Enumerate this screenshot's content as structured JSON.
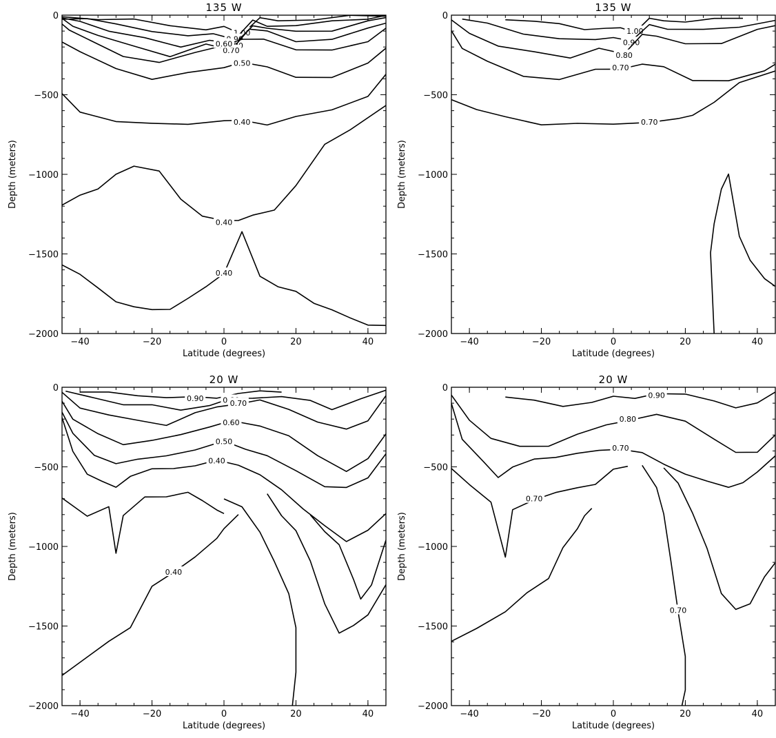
{
  "chart_data": [
    {
      "type": "line",
      "title": "135 W",
      "xlabel": "Latitude (degrees)",
      "ylabel": "Depth (meters)",
      "xlim": [
        -45,
        45
      ],
      "ylim": [
        -2000,
        0
      ],
      "x_ticks": [
        -40,
        -20,
        0,
        20,
        40
      ],
      "x_tick_labels": [
        "−40",
        "−20",
        "0",
        "20",
        "40"
      ],
      "y_ticks": [
        -2000,
        -1500,
        -1000,
        -500,
        0
      ],
      "y_tick_labels": [
        "−2000",
        "−1500",
        "−1000",
        "−500",
        "0"
      ],
      "grid": false,
      "series": [
        {
          "label": "1.00",
          "x": [
            -45,
            -35,
            -25,
            -15,
            -5,
            0,
            5,
            10,
            15,
            25,
            35,
            45
          ],
          "y": [
            -10,
            -20,
            -35,
            -60,
            -90,
            -80,
            -110,
            -20,
            -40,
            -20,
            -10,
            -5
          ]
        },
        {
          "label": "0.90",
          "x": [
            -45,
            -38,
            -30,
            -20,
            -10,
            -3,
            3,
            8,
            12,
            20,
            30,
            40,
            45
          ],
          "y": [
            -15,
            -30,
            -55,
            -95,
            -140,
            -110,
            -150,
            -40,
            -60,
            -70,
            -40,
            -15,
            -10
          ]
        },
        {
          "label": "0.80",
          "x": [
            -45,
            -40,
            -32,
            -22,
            -12,
            -4,
            3,
            8,
            12,
            20,
            30,
            40,
            45
          ],
          "y": [
            -20,
            -45,
            -90,
            -150,
            -200,
            -150,
            -190,
            -60,
            -80,
            -110,
            -90,
            -40,
            -20
          ]
        },
        {
          "label": "0.70",
          "x": [
            -45,
            -42,
            -35,
            -25,
            -15,
            -5,
            2,
            7,
            12,
            20,
            30,
            40,
            45
          ],
          "y": [
            -30,
            -60,
            -130,
            -200,
            -250,
            -190,
            -220,
            -80,
            -110,
            -160,
            -150,
            -90,
            -40
          ]
        },
        {
          "label": "0.60",
          "x": [
            -45,
            -43,
            -37,
            -28,
            -18,
            -8,
            0,
            5,
            11,
            20,
            30,
            40,
            45
          ],
          "y": [
            -50,
            -90,
            -170,
            -250,
            -300,
            -240,
            -180,
            -160,
            -150,
            -210,
            -230,
            -160,
            -80
          ]
        },
        {
          "label": "0.50",
          "x": [
            -45,
            -40,
            -30,
            -20,
            -10,
            0,
            5,
            12,
            20,
            30,
            40,
            45
          ],
          "y": [
            -160,
            -240,
            -330,
            -400,
            -370,
            -320,
            -300,
            -330,
            -380,
            -400,
            -300,
            -200
          ]
        },
        {
          "label": "0.40",
          "x": [
            -45,
            -40,
            -30,
            -20,
            -10,
            0,
            5,
            12,
            20,
            30,
            40,
            45
          ],
          "y": [
            -500,
            -610,
            -660,
            -690,
            -680,
            -660,
            -670,
            -680,
            -640,
            -600,
            -500,
            -380
          ]
        },
        {
          "label": "0.40",
          "x": [
            -45,
            -40,
            -35,
            -30,
            -25,
            -18,
            -12,
            -6,
            0,
            4,
            8,
            14,
            20,
            28,
            35,
            45
          ],
          "y": [
            -1200,
            -1120,
            -1100,
            -1000,
            -940,
            -990,
            -1150,
            -1260,
            -1300,
            -1280,
            -1260,
            -1230,
            -1060,
            -820,
            -720,
            -560
          ]
        },
        {
          "label": "0.40",
          "x": [
            -45,
            -40,
            -35,
            -30,
            -25,
            -20,
            -15,
            -10,
            -5,
            0,
            5,
            10,
            15,
            20,
            25,
            30,
            35,
            40,
            45
          ],
          "y": [
            -1560,
            -1630,
            -1720,
            -1790,
            -1840,
            -1850,
            -1840,
            -1790,
            -1700,
            -1620,
            -1370,
            -1630,
            -1710,
            -1740,
            -1800,
            -1860,
            -1900,
            -1940,
            -1960
          ]
        }
      ]
    },
    {
      "type": "line",
      "title": "135 W",
      "xlabel": "Latitude (degrees)",
      "ylabel": "Depth (meters)",
      "xlim": [
        -45,
        45
      ],
      "ylim": [
        -2000,
        0
      ],
      "x_ticks": [
        -40,
        -20,
        0,
        20,
        40
      ],
      "x_tick_labels": [
        "−40",
        "−20",
        "0",
        "20",
        "40"
      ],
      "y_ticks": [
        -2000,
        -1500,
        -1000,
        -500,
        0
      ],
      "y_tick_labels": [
        "−2000",
        "−1500",
        "−1000",
        "−500",
        "0"
      ],
      "grid": false,
      "series": [
        {
          "label": "1.00",
          "x": [
            -30,
            -22,
            -15,
            -8,
            -2,
            2,
            6,
            10,
            14,
            20,
            28,
            36
          ],
          "y": [
            -20,
            -40,
            -60,
            -80,
            -90,
            -80,
            -100,
            -30,
            -30,
            -40,
            -30,
            -10
          ]
        },
        {
          "label": "0.90",
          "x": [
            -42,
            -35,
            -25,
            -15,
            -5,
            0,
            5,
            10,
            15,
            25,
            35,
            45
          ],
          "y": [
            -20,
            -60,
            -110,
            -150,
            -160,
            -130,
            -170,
            -60,
            -80,
            -100,
            -70,
            -30
          ]
        },
        {
          "label": "0.80",
          "x": [
            -45,
            -40,
            -32,
            -22,
            -12,
            -4,
            3,
            8,
            12,
            20,
            30,
            40,
            45
          ],
          "y": [
            -40,
            -110,
            -190,
            -240,
            -260,
            -210,
            -250,
            -110,
            -140,
            -180,
            -170,
            -100,
            -60
          ]
        },
        {
          "label": "0.70",
          "x": [
            -45,
            -42,
            -35,
            -25,
            -15,
            -5,
            2,
            8,
            14,
            22,
            32,
            42,
            45
          ],
          "y": [
            -100,
            -200,
            -300,
            -380,
            -400,
            -350,
            -330,
            -310,
            -330,
            -400,
            -420,
            -350,
            -300
          ]
        },
        {
          "label": "0.70",
          "x": [
            -45,
            -38,
            -30,
            -20,
            -10,
            0,
            10,
            18,
            22,
            28,
            35,
            45
          ],
          "y": [
            -520,
            -600,
            -640,
            -680,
            -690,
            -680,
            -670,
            -660,
            -620,
            -550,
            -430,
            -340
          ]
        },
        {
          "label": "",
          "x": [
            28,
            27,
            28,
            30,
            32,
            35,
            38,
            42,
            45
          ],
          "y": [
            -2000,
            -1500,
            -1300,
            -1100,
            -1000,
            -1380,
            -1550,
            -1650,
            -1700
          ]
        }
      ]
    },
    {
      "type": "line",
      "title": "20 W",
      "xlabel": "Latitude (degrees)",
      "ylabel": "Depth (meters)",
      "xlim": [
        -45,
        45
      ],
      "ylim": [
        -2000,
        0
      ],
      "x_ticks": [
        -40,
        -20,
        0,
        20,
        40
      ],
      "x_tick_labels": [
        "−40",
        "−20",
        "0",
        "20",
        "40"
      ],
      "y_ticks": [
        -2000,
        -1500,
        -1000,
        -500,
        0
      ],
      "y_tick_labels": [
        "−2000",
        "−1500",
        "−1000",
        "−500",
        "0"
      ],
      "grid": false,
      "series": [
        {
          "label": "0.90",
          "x": [
            -40,
            -32,
            -24,
            -16,
            -8,
            -2,
            4,
            10,
            16
          ],
          "y": [
            -20,
            -40,
            -50,
            -60,
            -70,
            -60,
            -40,
            -30,
            -20
          ]
        },
        {
          "label": "0.80",
          "x": [
            -44,
            -36,
            -28,
            -20,
            -12,
            -4,
            2,
            8,
            16,
            24,
            30,
            38,
            45
          ],
          "y": [
            -30,
            -70,
            -100,
            -120,
            -140,
            -110,
            -80,
            -60,
            -60,
            -90,
            -130,
            -80,
            -20
          ]
        },
        {
          "label": "0.70",
          "x": [
            -45,
            -40,
            -32,
            -24,
            -16,
            -8,
            -2,
            4,
            10,
            18,
            26,
            34,
            40,
            45
          ],
          "y": [
            -40,
            -120,
            -180,
            -210,
            -230,
            -170,
            -120,
            -100,
            -90,
            -130,
            -220,
            -270,
            -200,
            -60
          ]
        },
        {
          "label": "0.60",
          "x": [
            -45,
            -42,
            -35,
            -28,
            -20,
            -12,
            -4,
            2,
            10,
            18,
            26,
            34,
            40,
            45
          ],
          "y": [
            -80,
            -200,
            -300,
            -350,
            -340,
            -300,
            -240,
            -220,
            -240,
            -300,
            -440,
            -520,
            -450,
            -300
          ]
        },
        {
          "label": "0.50",
          "x": [
            -45,
            -42,
            -36,
            -30,
            -24,
            -16,
            -8,
            0,
            6,
            12,
            20,
            28,
            34,
            40,
            45
          ],
          "y": [
            -150,
            -300,
            -420,
            -480,
            -460,
            -420,
            -400,
            -340,
            -380,
            -440,
            -520,
            -620,
            -640,
            -560,
            -420
          ]
        },
        {
          "label": "0.40",
          "x": [
            -45,
            -42,
            -38,
            -34,
            -30,
            -26,
            -20,
            -14,
            -8,
            -2,
            4,
            10,
            16,
            22,
            28,
            34,
            40,
            45
          ],
          "y": [
            -200,
            -400,
            -540,
            -600,
            -620,
            -560,
            -520,
            -500,
            -500,
            -460,
            -480,
            -560,
            -640,
            -760,
            -880,
            -960,
            -900,
            -800
          ]
        },
        {
          "label": "",
          "x": [
            -45,
            -38,
            -32,
            -30,
            -28,
            -22,
            -16,
            -10,
            -6,
            -2,
            0
          ],
          "y": [
            -700,
            -800,
            -760,
            -1040,
            -800,
            -700,
            -680,
            -660,
            -720,
            -760,
            -800
          ]
        },
        {
          "label": "0.40",
          "x": [
            -45,
            -38,
            -32,
            -26,
            -20,
            -14,
            -8,
            -2,
            0,
            4
          ],
          "y": [
            -1800,
            -1700,
            -1600,
            -1500,
            -1260,
            -1160,
            -1060,
            -960,
            -880,
            -800
          ]
        },
        {
          "label": "",
          "x": [
            0,
            5,
            10,
            14,
            18,
            20,
            20,
            19
          ],
          "y": [
            -700,
            -760,
            -900,
            -1100,
            -1300,
            -1500,
            -1800,
            -2000
          ]
        },
        {
          "label": "",
          "x": [
            12,
            16,
            20,
            24,
            28,
            32,
            36,
            40,
            45
          ],
          "y": [
            -680,
            -800,
            -900,
            -1100,
            -1350,
            -1550,
            -1500,
            -1420,
            -1250
          ]
        },
        {
          "label": "",
          "x": [
            24,
            28,
            32,
            36,
            38,
            41,
            45
          ],
          "y": [
            -800,
            -900,
            -1000,
            -1200,
            -1330,
            -1250,
            -950
          ]
        }
      ]
    },
    {
      "type": "line",
      "title": "20 W",
      "xlabel": "Latitude (degrees)",
      "ylabel": "Depth (meters)",
      "xlim": [
        -45,
        45
      ],
      "ylim": [
        -2000,
        0
      ],
      "x_ticks": [
        -40,
        -20,
        0,
        20,
        40
      ],
      "x_tick_labels": [
        "−40",
        "−20",
        "0",
        "20",
        "40"
      ],
      "y_ticks": [
        -2000,
        -1500,
        -1000,
        -500,
        0
      ],
      "y_tick_labels": [
        "−2000",
        "−1500",
        "−1000",
        "−500",
        "0"
      ],
      "grid": false,
      "series": [
        {
          "label": "0.90",
          "x": [
            -30,
            -22,
            -14,
            -6,
            0,
            6,
            12,
            20,
            28,
            34,
            40,
            45
          ],
          "y": [
            -60,
            -90,
            -110,
            -100,
            -60,
            -60,
            -50,
            -40,
            -80,
            -140,
            -90,
            -30
          ]
        },
        {
          "label": "0.80",
          "x": [
            -45,
            -40,
            -34,
            -26,
            -18,
            -10,
            -2,
            4,
            12,
            20,
            28,
            34,
            40,
            45
          ],
          "y": [
            -60,
            -200,
            -320,
            -380,
            -360,
            -300,
            -240,
            -200,
            -180,
            -210,
            -320,
            -420,
            -400,
            -300
          ]
        },
        {
          "label": "0.70",
          "x": [
            -45,
            -42,
            -36,
            -32,
            -28,
            -22,
            -16,
            -10,
            -4,
            2,
            8,
            14,
            20,
            26,
            32,
            36,
            40,
            45
          ],
          "y": [
            -100,
            -320,
            -480,
            -560,
            -500,
            -460,
            -430,
            -420,
            -400,
            -380,
            -420,
            -480,
            -540,
            -600,
            -620,
            -600,
            -540,
            -420
          ]
        },
        {
          "label": "0.70",
          "x": [
            -45,
            -40,
            -34,
            -30,
            -28,
            -22,
            -16,
            -10,
            -5,
            0,
            4
          ],
          "y": [
            -500,
            -620,
            -720,
            -1060,
            -780,
            -700,
            -660,
            -640,
            -600,
            -520,
            -500
          ]
        },
        {
          "label": "",
          "x": [
            -45,
            -38,
            -30,
            -24,
            -18,
            -14,
            -10,
            -8,
            -6
          ],
          "y": [
            -1600,
            -1520,
            -1400,
            -1300,
            -1200,
            -1000,
            -900,
            -800,
            -760
          ]
        },
        {
          "label": "0.70",
          "x": [
            8,
            12,
            14,
            16,
            18,
            20,
            20,
            19
          ],
          "y": [
            -500,
            -620,
            -800,
            -1100,
            -1400,
            -1700,
            -1900,
            -2000
          ]
        },
        {
          "label": "",
          "x": [
            14,
            18,
            22,
            26,
            30,
            34,
            38,
            42,
            45
          ],
          "y": [
            -500,
            -600,
            -800,
            -1000,
            -1300,
            -1400,
            -1350,
            -1200,
            -1100
          ]
        }
      ]
    }
  ]
}
